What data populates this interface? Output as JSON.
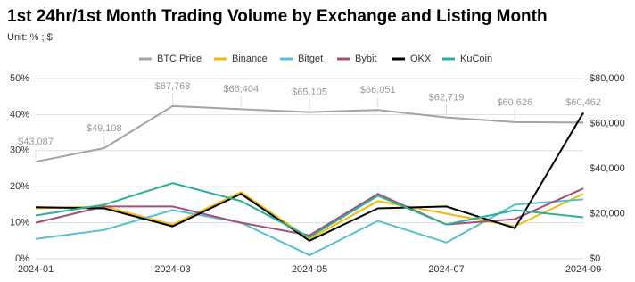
{
  "chart_data": {
    "type": "line",
    "title": "1st 24hr/1st Month Trading Volume by Exchange and Listing Month",
    "subtitle": "Unit: % ; $",
    "categories": [
      "2024-01",
      null,
      "2024-03",
      null,
      "2024-05",
      null,
      "2024-07",
      null,
      "2024-09"
    ],
    "series": [
      {
        "name": "BTC Price",
        "color": "#a3a3a3",
        "axis": "y2",
        "values": [
          43087,
          49108,
          67768,
          66404,
          65105,
          66051,
          62719,
          60626,
          60462
        ],
        "value_labels": [
          "$43,087",
          "$49,108",
          "$67,768",
          "$66,404",
          "$65,105",
          "$66,051",
          "$62,719",
          "$60,626",
          "$60,462"
        ]
      },
      {
        "name": "Binance",
        "color": "#f0b90b",
        "values": [
          14,
          14.5,
          9.5,
          18.5,
          5.5,
          16,
          12.5,
          9,
          18
        ]
      },
      {
        "name": "Bitget",
        "color": "#55c2d0",
        "values": [
          5.5,
          8,
          13.5,
          10,
          1,
          10.5,
          4.5,
          15,
          16.5
        ]
      },
      {
        "name": "Bybit",
        "color": "#a64d79",
        "values": [
          10,
          14.5,
          14.5,
          10,
          6.5,
          18,
          9.5,
          11,
          19.5
        ]
      },
      {
        "name": "OKX",
        "color": "#000000",
        "values": [
          14.3,
          14,
          9,
          18,
          5,
          14,
          14.5,
          8.5,
          40.5
        ]
      },
      {
        "name": "KuCoin",
        "color": "#2bb19a",
        "values": [
          12,
          15,
          21,
          16,
          6,
          17.5,
          9.5,
          13.5,
          11.5
        ]
      }
    ],
    "ylim": [
      0,
      50
    ],
    "yticks": [
      {
        "value": 0,
        "label": "0%"
      },
      {
        "value": 10,
        "label": "10%"
      },
      {
        "value": 20,
        "label": "20%"
      },
      {
        "value": 30,
        "label": "30%"
      },
      {
        "value": 40,
        "label": "40%"
      },
      {
        "value": 50,
        "label": "50%"
      }
    ],
    "y2lim": [
      0,
      80000
    ],
    "y2ticks": [
      {
        "value": 0,
        "label": "$0"
      },
      {
        "value": 20000,
        "label": "$20,000"
      },
      {
        "value": 40000,
        "label": "$40,000"
      },
      {
        "value": 60000,
        "label": "$60,000"
      },
      {
        "value": 80000,
        "label": "$80,000"
      }
    ],
    "grid": true,
    "legend": "top"
  }
}
